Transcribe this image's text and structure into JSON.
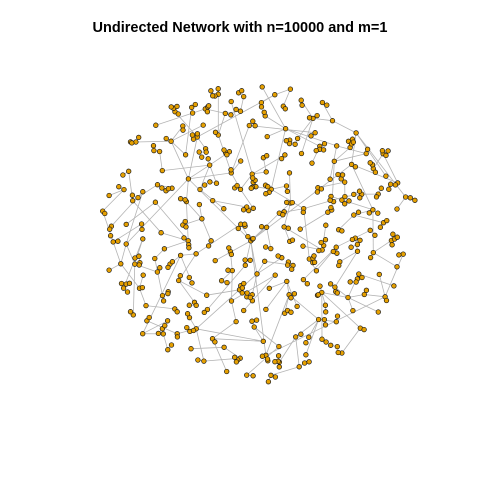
{
  "title": "Undirected Network with n=10000 and m=1",
  "network": {
    "n": 10000,
    "m": 1,
    "directed": false,
    "node_fill": "#E6A000",
    "node_stroke": "#1a1a1a",
    "edge_color": "#b4b4b4",
    "background": "#ffffff"
  }
}
